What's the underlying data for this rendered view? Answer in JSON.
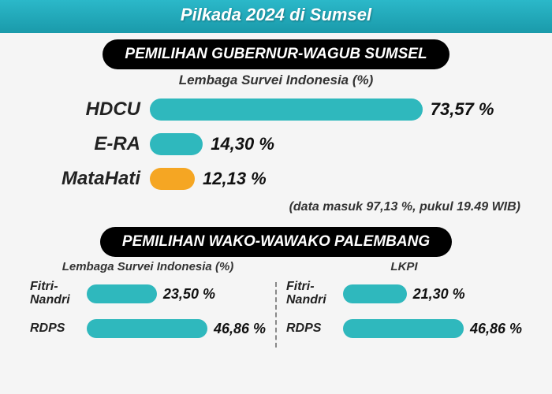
{
  "banner": "Pilkada 2024 di Sumsel",
  "colors": {
    "banner_bg": "#2bb8c9",
    "pill_bg": "#000000",
    "pill_fg": "#ffffff",
    "bar_teal": "#2fb8bd",
    "bar_orange": "#f5a623",
    "text": "#222222"
  },
  "section1": {
    "title": "PEMILIHAN GUBERNUR-WAGUB  SUMSEL",
    "subtitle": "Lembaga Survei Indonesia (%)",
    "max": 100,
    "rows": [
      {
        "label": "HDCU",
        "value": 73.57,
        "text": "73,57 %",
        "color": "#2fb8bd"
      },
      {
        "label": "E-RA",
        "value": 14.3,
        "text": "14,30 %",
        "color": "#2fb8bd"
      },
      {
        "label": "MataHati",
        "value": 12.13,
        "text": "12,13 %",
        "color": "#f5a623"
      }
    ],
    "footnote": "(data masuk 97,13 %, pukul 19.49 WIB)"
  },
  "section2": {
    "title": "PEMILIHAN WAKO-WAWAKO PALEMBANG",
    "max": 60,
    "left": {
      "subtitle": "Lembaga Survei Indonesia (%)",
      "rows": [
        {
          "label": "Fitri-\nNandri",
          "value": 23.5,
          "text": "23,50 %",
          "color": "#2fb8bd"
        },
        {
          "label": "RDPS",
          "value": 46.86,
          "text": "46,86 %",
          "color": "#2fb8bd"
        }
      ]
    },
    "right": {
      "subtitle": "LKPI",
      "rows": [
        {
          "label": "Fitri-\nNandri",
          "value": 21.3,
          "text": "21,30 %",
          "color": "#2fb8bd"
        },
        {
          "label": "RDPS",
          "value": 46.86,
          "text": "46,86 %",
          "color": "#2fb8bd"
        }
      ]
    }
  }
}
